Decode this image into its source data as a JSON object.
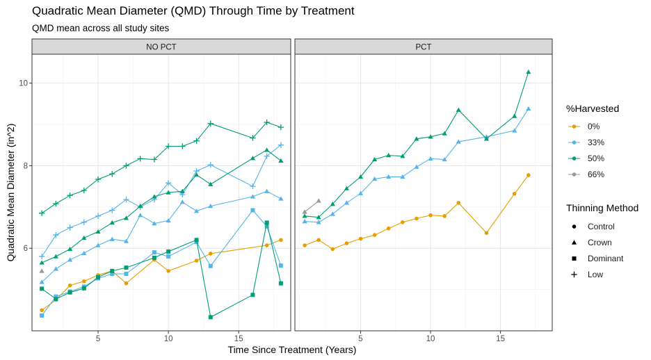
{
  "chart_data": {
    "type": "line",
    "title": "Quadratic Mean Diameter (QMD) Through Time by Treatment",
    "subtitle": "QMD mean across all study sites",
    "xlabel": "Time Since Treatment (Years)",
    "ylabel": "Quadratic Mean Diameter (in^2)",
    "xlim": [
      0.3,
      18.7
    ],
    "ylim": [
      4.0,
      10.7
    ],
    "x_ticks": [
      5,
      10,
      15
    ],
    "y_ticks": [
      6,
      8,
      10
    ],
    "grid": true,
    "legend_placement": "right",
    "legend_color_title": "%Harvested",
    "legend_shape_title": "Thinning Method",
    "harvest_levels": [
      {
        "label": "0%",
        "color": "#E69F00"
      },
      {
        "label": "33%",
        "color": "#56B4E9"
      },
      {
        "label": "50%",
        "color": "#009E73"
      },
      {
        "label": "66%",
        "color": "#999999"
      }
    ],
    "methods": [
      {
        "label": "Control",
        "shape": "circle"
      },
      {
        "label": "Crown",
        "shape": "triangle"
      },
      {
        "label": "Dominant",
        "shape": "square"
      },
      {
        "label": "Low",
        "shape": "cross"
      }
    ],
    "panels": [
      {
        "label": "NO PCT",
        "series": [
          {
            "harvest": "0%",
            "method": "Control",
            "points": [
              [
                1,
                4.5
              ],
              [
                2,
                4.75
              ],
              [
                3,
                5.1
              ],
              [
                4,
                5.2
              ],
              [
                5,
                5.35
              ],
              [
                6,
                5.45
              ],
              [
                7,
                5.15
              ],
              [
                9,
                5.72
              ],
              [
                10,
                5.45
              ],
              [
                12,
                5.7
              ],
              [
                13,
                5.87
              ],
              [
                17,
                6.07
              ],
              [
                18,
                6.2
              ]
            ]
          },
          {
            "harvest": "33%",
            "method": "Crown",
            "points": [
              [
                1,
                5.18
              ],
              [
                2,
                5.5
              ],
              [
                3,
                5.72
              ],
              [
                4,
                5.88
              ],
              [
                5,
                6.07
              ],
              [
                6,
                6.22
              ],
              [
                7,
                6.17
              ],
              [
                8,
                6.8
              ],
              [
                9,
                6.6
              ],
              [
                10,
                6.67
              ],
              [
                11,
                7.12
              ],
              [
                12,
                6.9
              ],
              [
                13,
                7.02
              ],
              [
                16,
                7.25
              ],
              [
                17,
                7.38
              ],
              [
                18,
                7.2
              ]
            ]
          },
          {
            "harvest": "33%",
            "method": "Low",
            "points": [
              [
                1,
                5.8
              ],
              [
                2,
                6.32
              ],
              [
                3,
                6.5
              ],
              [
                4,
                6.63
              ],
              [
                5,
                6.78
              ],
              [
                6,
                6.92
              ],
              [
                7,
                7.18
              ],
              [
                8,
                7.0
              ],
              [
                9,
                7.18
              ],
              [
                10,
                7.58
              ],
              [
                11,
                7.3
              ],
              [
                12,
                7.87
              ],
              [
                13,
                8.02
              ],
              [
                16,
                7.5
              ],
              [
                17,
                8.23
              ],
              [
                18,
                8.5
              ]
            ]
          },
          {
            "harvest": "33%",
            "method": "Dominant",
            "points": [
              [
                1,
                4.37
              ],
              [
                2,
                4.83
              ],
              [
                3,
                4.95
              ],
              [
                4,
                5.07
              ],
              [
                5,
                5.27
              ],
              [
                6,
                5.38
              ],
              [
                7,
                5.38
              ],
              [
                9,
                5.9
              ],
              [
                10,
                5.8
              ],
              [
                12,
                6.15
              ],
              [
                13,
                5.57
              ],
              [
                16,
                6.92
              ],
              [
                17,
                6.53
              ],
              [
                18,
                5.58
              ]
            ]
          },
          {
            "harvest": "50%",
            "method": "Crown",
            "points": [
              [
                1,
                5.65
              ],
              [
                2,
                5.8
              ],
              [
                3,
                5.98
              ],
              [
                4,
                6.25
              ],
              [
                5,
                6.4
              ],
              [
                6,
                6.62
              ],
              [
                7,
                6.73
              ],
              [
                8,
                7.02
              ],
              [
                9,
                7.25
              ],
              [
                10,
                7.35
              ],
              [
                11,
                7.38
              ],
              [
                12,
                7.78
              ],
              [
                13,
                7.55
              ],
              [
                16,
                8.18
              ],
              [
                17,
                8.38
              ],
              [
                18,
                8.12
              ]
            ]
          },
          {
            "harvest": "50%",
            "method": "Low",
            "points": [
              [
                1,
                6.85
              ],
              [
                2,
                7.08
              ],
              [
                3,
                7.28
              ],
              [
                4,
                7.4
              ],
              [
                5,
                7.67
              ],
              [
                6,
                7.8
              ],
              [
                7,
                8.0
              ],
              [
                8,
                8.17
              ],
              [
                9,
                8.15
              ],
              [
                10,
                8.47
              ],
              [
                11,
                8.47
              ],
              [
                12,
                8.6
              ],
              [
                13,
                9.02
              ],
              [
                16,
                8.67
              ],
              [
                17,
                9.05
              ],
              [
                18,
                8.93
              ]
            ]
          },
          {
            "harvest": "50%",
            "method": "Dominant",
            "points": [
              [
                1,
                5.02
              ],
              [
                2,
                4.77
              ],
              [
                3,
                4.93
              ],
              [
                4,
                5.03
              ],
              [
                5,
                5.3
              ],
              [
                6,
                5.45
              ],
              [
                7,
                5.53
              ],
              [
                9,
                5.77
              ],
              [
                10,
                5.92
              ],
              [
                12,
                6.2
              ],
              [
                13,
                4.33
              ],
              [
                16,
                4.87
              ],
              [
                17,
                6.62
              ],
              [
                18,
                5.15
              ]
            ]
          },
          {
            "harvest": "66%",
            "method": "Crown",
            "points": [
              [
                1,
                5.45
              ]
            ]
          }
        ]
      },
      {
        "label": "PCT",
        "series": [
          {
            "harvest": "0%",
            "method": "Control",
            "points": [
              [
                1,
                6.07
              ],
              [
                2,
                6.2
              ],
              [
                3,
                5.98
              ],
              [
                4,
                6.12
              ],
              [
                5,
                6.23
              ],
              [
                6,
                6.32
              ],
              [
                7,
                6.48
              ],
              [
                8,
                6.63
              ],
              [
                9,
                6.72
              ],
              [
                10,
                6.8
              ],
              [
                11,
                6.78
              ],
              [
                12,
                7.1
              ],
              [
                14,
                6.37
              ],
              [
                16,
                7.32
              ],
              [
                17,
                7.77
              ]
            ]
          },
          {
            "harvest": "33%",
            "method": "Crown",
            "points": [
              [
                1,
                6.65
              ],
              [
                2,
                6.63
              ],
              [
                3,
                6.83
              ],
              [
                4,
                7.1
              ],
              [
                5,
                7.33
              ],
              [
                6,
                7.68
              ],
              [
                7,
                7.73
              ],
              [
                8,
                7.73
              ],
              [
                9,
                7.97
              ],
              [
                10,
                8.17
              ],
              [
                11,
                8.15
              ],
              [
                12,
                8.58
              ],
              [
                14,
                8.7
              ],
              [
                16,
                8.85
              ],
              [
                17,
                9.38
              ]
            ]
          },
          {
            "harvest": "50%",
            "method": "Crown",
            "points": [
              [
                1,
                6.78
              ],
              [
                2,
                6.75
              ],
              [
                3,
                7.07
              ],
              [
                4,
                7.45
              ],
              [
                5,
                7.73
              ],
              [
                6,
                8.15
              ],
              [
                7,
                8.25
              ],
              [
                8,
                8.23
              ],
              [
                9,
                8.65
              ],
              [
                10,
                8.7
              ],
              [
                11,
                8.78
              ],
              [
                12,
                9.35
              ],
              [
                14,
                8.65
              ],
              [
                16,
                9.2
              ],
              [
                17,
                10.27
              ]
            ]
          },
          {
            "harvest": "66%",
            "method": "Crown",
            "points": [
              [
                1,
                6.88
              ],
              [
                2,
                7.15
              ]
            ]
          }
        ]
      }
    ]
  }
}
